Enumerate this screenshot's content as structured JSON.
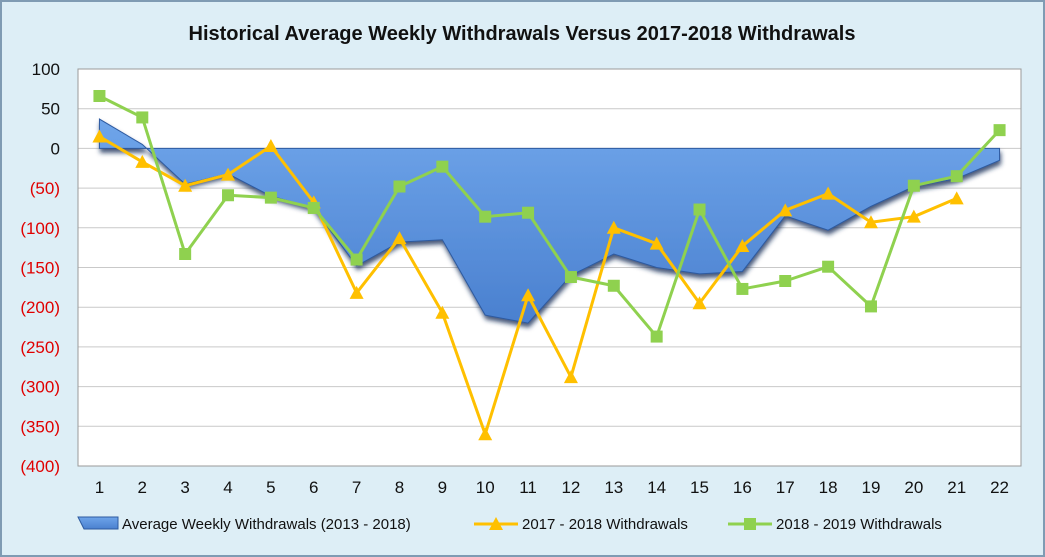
{
  "chart_data": {
    "type": "line",
    "title": "Historical Average Weekly Withdrawals Versus 2017-2018 Withdrawals",
    "categories": [
      "1",
      "2",
      "3",
      "4",
      "5",
      "6",
      "7",
      "8",
      "9",
      "10",
      "11",
      "12",
      "13",
      "14",
      "15",
      "16",
      "17",
      "18",
      "19",
      "20",
      "21",
      "22"
    ],
    "ylim": [
      -400,
      100
    ],
    "yticks": [
      100,
      50,
      0,
      -50,
      -100,
      -150,
      -200,
      -250,
      -300,
      -350,
      -400
    ],
    "ytick_labels": [
      "100",
      "50",
      "0",
      "(50)",
      "(100)",
      "(150)",
      "(200)",
      "(250)",
      "(300)",
      "(350)",
      "(400)"
    ],
    "grid": true,
    "legend_position": "bottom",
    "series": [
      {
        "name": "Average Weekly Withdrawals (2013 - 2018)",
        "kind": "area",
        "color": "#5b94dd",
        "values": [
          37,
          5,
          -45,
          -32,
          -60,
          -75,
          -148,
          -118,
          -115,
          -210,
          -220,
          -160,
          -133,
          -150,
          -158,
          -155,
          -85,
          -103,
          -73,
          -48,
          -38,
          -15
        ]
      },
      {
        "name": "2017 - 2018 Withdrawals",
        "kind": "line",
        "color": "#ffc000",
        "marker": "triangle",
        "values": [
          15,
          -17,
          -47,
          -33,
          3,
          -68,
          -182,
          -113,
          -207,
          -360,
          -185,
          -288,
          -100,
          -120,
          -195,
          -123,
          -78,
          -57,
          -93,
          -86,
          -63,
          null
        ]
      },
      {
        "name": "2018 - 2019 Withdrawals",
        "kind": "line",
        "color": "#8fd14f",
        "marker": "square",
        "values": [
          66,
          39,
          -133,
          -59,
          -62,
          -75,
          -140,
          -48,
          -23,
          -86,
          -81,
          -162,
          -173,
          -237,
          -77,
          -177,
          -167,
          -149,
          -199,
          -47,
          -35,
          23
        ]
      }
    ],
    "colors": {
      "background": "#ddeef6",
      "plot_background": "#ffffff",
      "positive_tick": "#111111",
      "negative_tick": "#e00000",
      "grid": "#c9c9c9"
    }
  }
}
